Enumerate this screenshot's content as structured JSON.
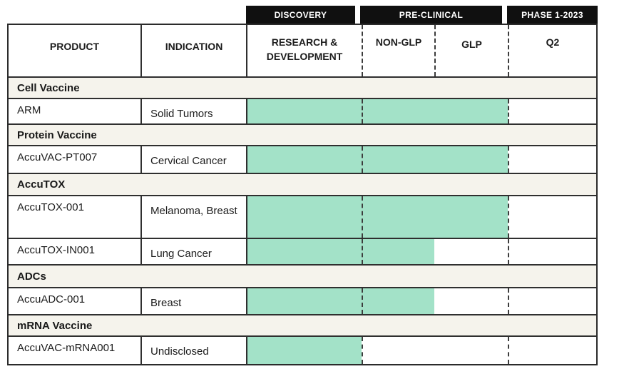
{
  "colors": {
    "bar_green": "#a3e2c8",
    "section_row_bg": "#f5f3ec",
    "badge_bg": "#101010",
    "badge_text": "#ffffff",
    "border_dark": "#2b2b2b",
    "text": "#1c1c1c"
  },
  "phase_badges": [
    {
      "label": "DISCOVERY"
    },
    {
      "label": "PRE-CLINICAL"
    },
    {
      "label": "PHASE 1-2023"
    }
  ],
  "header": {
    "product_label": "PRODUCT",
    "indication_label": "INDICATION",
    "stages": [
      {
        "label": "RESEARCH & DEVELOPMENT"
      },
      {
        "label": "NON-GLP"
      },
      {
        "label": "GLP"
      },
      {
        "label": "Q2"
      }
    ]
  },
  "rows": [
    {
      "type": "section",
      "label": "Cell Vaccine"
    },
    {
      "type": "product",
      "product": "ARM",
      "indication": "Solid Tumors",
      "bar_stages": 3
    },
    {
      "type": "section",
      "label": "Protein Vaccine"
    },
    {
      "type": "product",
      "product": "AccuVAC-PT007",
      "indication": "Cervical Cancer",
      "bar_stages": 3
    },
    {
      "type": "section",
      "label": "AccuTOX"
    },
    {
      "type": "product",
      "product": "AccuTOX-001",
      "indication": "Melanoma, Breast",
      "bar_stages": 3
    },
    {
      "type": "product",
      "product": "AccuTOX-IN001",
      "indication": "Lung Cancer",
      "bar_stages": 2
    },
    {
      "type": "section",
      "label": "ADCs"
    },
    {
      "type": "product",
      "product": "AccuADC-001",
      "indication": "Breast",
      "bar_stages": 2
    },
    {
      "type": "section",
      "label": "mRNA Vaccine"
    },
    {
      "type": "product",
      "product": "AccuVAC-mRNA001",
      "indication": "Undisclosed",
      "bar_stages": 1
    }
  ],
  "chart_data": {
    "type": "table",
    "title": "Drug development pipeline",
    "phase_groups": [
      "DISCOVERY",
      "PRE-CLINICAL",
      "PHASE 1-2023"
    ],
    "stage_columns": [
      "RESEARCH & DEVELOPMENT",
      "NON-GLP",
      "GLP",
      "Q2"
    ],
    "sections": [
      {
        "name": "Cell Vaccine",
        "products": [
          {
            "product": "ARM",
            "indication": "Solid Tumors",
            "progress_through": "GLP"
          }
        ]
      },
      {
        "name": "Protein Vaccine",
        "products": [
          {
            "product": "AccuVAC-PT007",
            "indication": "Cervical Cancer",
            "progress_through": "GLP"
          }
        ]
      },
      {
        "name": "AccuTOX",
        "products": [
          {
            "product": "AccuTOX-001",
            "indication": "Melanoma, Breast",
            "progress_through": "GLP"
          },
          {
            "product": "AccuTOX-IN001",
            "indication": "Lung Cancer",
            "progress_through": "NON-GLP"
          }
        ]
      },
      {
        "name": "ADCs",
        "products": [
          {
            "product": "AccuADC-001",
            "indication": "Breast",
            "progress_through": "NON-GLP"
          }
        ]
      },
      {
        "name": "mRNA Vaccine",
        "products": [
          {
            "product": "AccuVAC-mRNA001",
            "indication": "Undisclosed",
            "progress_through": "RESEARCH & DEVELOPMENT"
          }
        ]
      }
    ]
  }
}
